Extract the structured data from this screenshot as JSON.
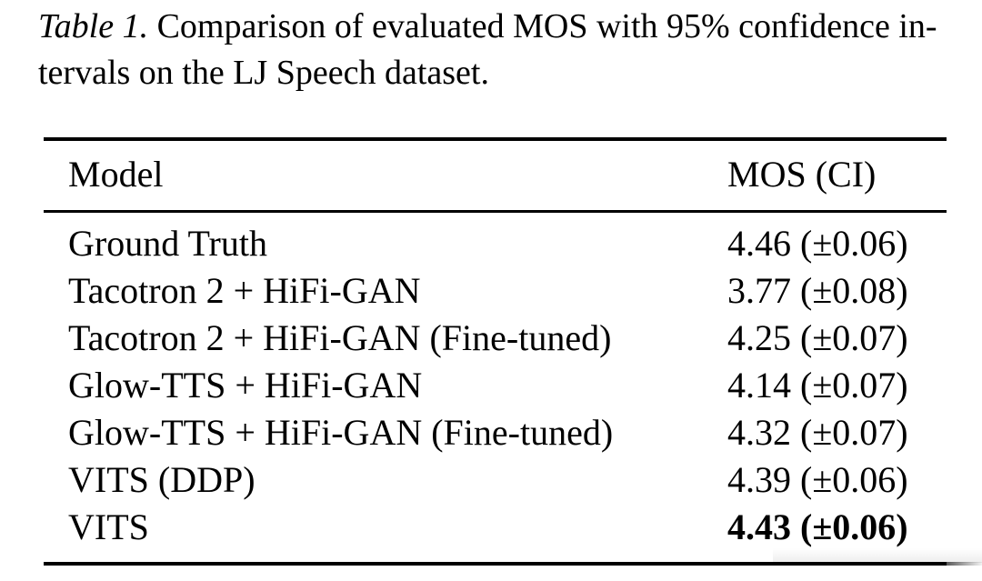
{
  "page": {
    "background": "#ffffff",
    "text_color": "#000000"
  },
  "caption": {
    "label": "Table 1.",
    "line1_rest": " Comparison of evaluated MOS with 95% confidence in-",
    "line2": "tervals on the LJ Speech dataset."
  },
  "table": {
    "columns": [
      "Model",
      "MOS (CI)"
    ],
    "rows": [
      {
        "model": "Ground Truth",
        "mos": "4.46 (±0.06)",
        "bold": false
      },
      {
        "model": "Tacotron 2 + HiFi-GAN",
        "mos": "3.77 (±0.08)",
        "bold": false
      },
      {
        "model": "Tacotron 2 + HiFi-GAN (Fine-tuned)",
        "mos": "4.25 (±0.07)",
        "bold": false
      },
      {
        "model": "Glow-TTS + HiFi-GAN",
        "mos": "4.14 (±0.07)",
        "bold": false
      },
      {
        "model": "Glow-TTS + HiFi-GAN (Fine-tuned)",
        "mos": "4.32 (±0.07)",
        "bold": false
      },
      {
        "model": "VITS (DDP)",
        "mos": "4.39 (±0.06)",
        "bold": false
      },
      {
        "model": "VITS",
        "mos": "4.43 (±0.06)",
        "bold": true
      }
    ]
  },
  "chart_data": {
    "type": "table",
    "title": "Comparison of evaluated MOS with 95% confidence intervals on the LJ Speech dataset",
    "columns": [
      "Model",
      "MOS (CI)"
    ],
    "rows": [
      [
        "Ground Truth",
        "4.46 (±0.06)"
      ],
      [
        "Tacotron 2 + HiFi-GAN",
        "3.77 (±0.08)"
      ],
      [
        "Tacotron 2 + HiFi-GAN (Fine-tuned)",
        "4.25 (±0.07)"
      ],
      [
        "Glow-TTS + HiFi-GAN",
        "4.14 (±0.07)"
      ],
      [
        "Glow-TTS + HiFi-GAN (Fine-tuned)",
        "4.32 (±0.07)"
      ],
      [
        "VITS (DDP)",
        "4.39 (±0.06)"
      ],
      [
        "VITS",
        "4.43 (±0.06)"
      ]
    ],
    "mos_values": [
      4.46,
      3.77,
      4.25,
      4.14,
      4.32,
      4.39,
      4.43
    ],
    "ci_values": [
      0.06,
      0.08,
      0.07,
      0.07,
      0.07,
      0.06,
      0.06
    ]
  }
}
